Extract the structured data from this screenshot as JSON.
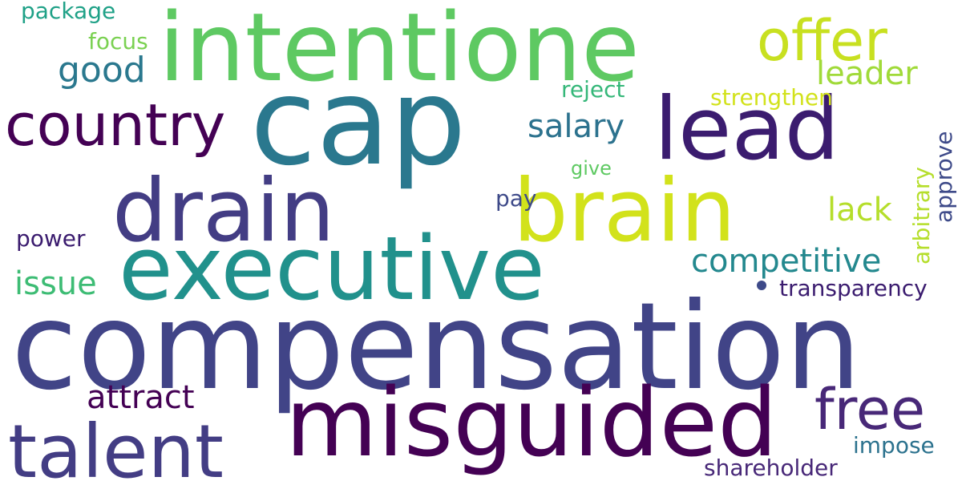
{
  "words": [
    {
      "text": "compensation",
      "color": "#414487"
    },
    {
      "text": "cap",
      "color": "#2a788e"
    },
    {
      "text": "intentione",
      "color": "#5ec962"
    },
    {
      "text": "misguided",
      "color": "#440154"
    },
    {
      "text": "executive",
      "color": "#21918c"
    },
    {
      "text": "drain",
      "color": "#433d84"
    },
    {
      "text": "brain",
      "color": "#d2e21b"
    },
    {
      "text": "lead",
      "color": "#3b1c6f"
    },
    {
      "text": "talent",
      "color": "#433d84"
    },
    {
      "text": "country",
      "color": "#440154"
    },
    {
      "text": "offer",
      "color": "#c8e020"
    },
    {
      "text": "free",
      "color": "#482878"
    },
    {
      "text": "good",
      "color": "#2a788e"
    },
    {
      "text": "leader",
      "color": "#a0da39"
    },
    {
      "text": "salary",
      "color": "#2c728e"
    },
    {
      "text": "competitive",
      "color": "#23888e"
    },
    {
      "text": "attract",
      "color": "#440154"
    },
    {
      "text": "lack",
      "color": "#b5de2b"
    },
    {
      "text": "issue",
      "color": "#3dbc74"
    },
    {
      "text": "power",
      "color": "#3b1c6f"
    },
    {
      "text": "pay",
      "color": "#3e4a89"
    },
    {
      "text": "transparency",
      "color": "#3b1c6f"
    },
    {
      "text": "shareholder",
      "color": "#482878"
    },
    {
      "text": "impose",
      "color": "#2c728e"
    },
    {
      "text": "package",
      "color": "#1fa187"
    },
    {
      "text": "focus",
      "color": "#7ad151"
    },
    {
      "text": "reject",
      "color": "#35b779"
    },
    {
      "text": "strengthen",
      "color": "#d2e21b"
    },
    {
      "text": "give",
      "color": "#5ec962"
    },
    {
      "text": "arbitrary",
      "color": "#b5de2b"
    },
    {
      "text": "approve",
      "color": "#3e4a89"
    }
  ]
}
